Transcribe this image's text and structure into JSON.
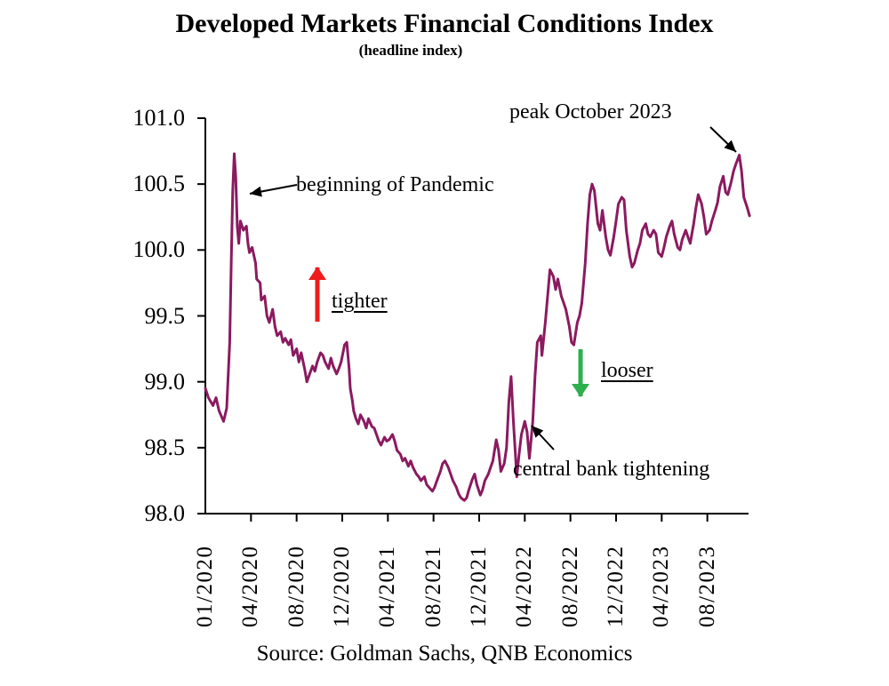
{
  "title": "Developed Markets Financial Conditions Index",
  "subtitle": "(headline index)",
  "source_note": "Source: Goldman Sachs, QNB Economics",
  "annotations": {
    "pandemic": "beginning of Pandemic",
    "peak": "peak October 2023",
    "tighter": "tighter",
    "looser": "looser",
    "central_bank": "central bank tightening"
  },
  "colors": {
    "line": "#8B1A5F",
    "axis": "#000000",
    "annotation_arrow": "#000000",
    "tighter_arrow": "#EE1C1C",
    "looser_arrow": "#2DAF4E"
  },
  "chart_data": {
    "type": "line",
    "title": "Developed Markets Financial Conditions Index (headline index)",
    "legend": "none",
    "grid": "off",
    "y_axis": {
      "min": 98.0,
      "max": 101.0,
      "ticks": [
        {
          "v": 101.0,
          "label": "101.0"
        },
        {
          "v": 100.5,
          "label": "100.5"
        },
        {
          "v": 100.0,
          "label": "100.0"
        },
        {
          "v": 99.5,
          "label": "99.5"
        },
        {
          "v": 99.0,
          "label": "99.0"
        },
        {
          "v": 98.5,
          "label": "98.5"
        },
        {
          "v": 98.0,
          "label": "98.0"
        }
      ]
    },
    "x_axis": {
      "note": "m = months since 01/2020; daily index observations 01/2020 - late 2023",
      "ticks": [
        {
          "m": 0,
          "label": "01/2020"
        },
        {
          "m": 3,
          "label": "04/2020"
        },
        {
          "m": 7,
          "label": "08/2020"
        },
        {
          "m": 11,
          "label": "12/2020"
        },
        {
          "m": 15,
          "label": "04/2021"
        },
        {
          "m": 19,
          "label": "08/2021"
        },
        {
          "m": 23,
          "label": "12/2021"
        },
        {
          "m": 27,
          "label": "04/2022"
        },
        {
          "m": 31,
          "label": "08/2022"
        },
        {
          "m": 35,
          "label": "12/2022"
        },
        {
          "m": 39,
          "label": "04/2023"
        },
        {
          "m": 43,
          "label": "08/2023"
        }
      ]
    },
    "series": [
      {
        "name": "DM Financial Conditions Index (headline)",
        "points": [
          [
            0,
            98.95
          ],
          [
            0.2,
            98.88
          ],
          [
            0.5,
            98.82
          ],
          [
            0.7,
            98.88
          ],
          [
            0.9,
            98.78
          ],
          [
            1.2,
            98.7
          ],
          [
            1.4,
            98.8
          ],
          [
            1.6,
            99.3
          ],
          [
            1.7,
            99.9
          ],
          [
            1.8,
            100.45
          ],
          [
            1.9,
            100.73
          ],
          [
            2.0,
            100.55
          ],
          [
            2.1,
            100.18
          ],
          [
            2.2,
            100.05
          ],
          [
            2.3,
            100.22
          ],
          [
            2.5,
            100.15
          ],
          [
            2.7,
            100.18
          ],
          [
            2.8,
            100.05
          ],
          [
            2.9,
            99.98
          ],
          [
            3.1,
            100.02
          ],
          [
            3.4,
            99.9
          ],
          [
            3.5,
            99.78
          ],
          [
            3.8,
            99.75
          ],
          [
            3.9,
            99.62
          ],
          [
            4.2,
            99.65
          ],
          [
            4.4,
            99.5
          ],
          [
            4.6,
            99.45
          ],
          [
            4.9,
            99.55
          ],
          [
            5.1,
            99.42
          ],
          [
            5.3,
            99.35
          ],
          [
            5.6,
            99.38
          ],
          [
            5.8,
            99.3
          ],
          [
            6.0,
            99.33
          ],
          [
            6.3,
            99.28
          ],
          [
            6.5,
            99.32
          ],
          [
            6.7,
            99.2
          ],
          [
            7.0,
            99.25
          ],
          [
            7.2,
            99.15
          ],
          [
            7.4,
            99.22
          ],
          [
            7.7,
            99.1
          ],
          [
            7.9,
            99.0
          ],
          [
            8.1,
            99.05
          ],
          [
            8.4,
            99.12
          ],
          [
            8.6,
            99.08
          ],
          [
            8.8,
            99.15
          ],
          [
            9.1,
            99.22
          ],
          [
            9.3,
            99.2
          ],
          [
            9.5,
            99.15
          ],
          [
            9.8,
            99.1
          ],
          [
            10.0,
            99.18
          ],
          [
            10.2,
            99.12
          ],
          [
            10.5,
            99.06
          ],
          [
            10.7,
            99.1
          ],
          [
            10.9,
            99.15
          ],
          [
            11.2,
            99.28
          ],
          [
            11.4,
            99.3
          ],
          [
            11.6,
            99.1
          ],
          [
            11.7,
            98.95
          ],
          [
            11.9,
            98.85
          ],
          [
            12.0,
            98.78
          ],
          [
            12.2,
            98.72
          ],
          [
            12.4,
            98.68
          ],
          [
            12.6,
            98.75
          ],
          [
            12.9,
            98.7
          ],
          [
            13.1,
            98.65
          ],
          [
            13.3,
            98.72
          ],
          [
            13.6,
            98.66
          ],
          [
            13.8,
            98.65
          ],
          [
            14.0,
            98.6
          ],
          [
            14.2,
            98.55
          ],
          [
            14.4,
            98.52
          ],
          [
            14.7,
            98.58
          ],
          [
            14.9,
            98.55
          ],
          [
            15.1,
            98.56
          ],
          [
            15.4,
            98.6
          ],
          [
            15.6,
            98.55
          ],
          [
            15.8,
            98.48
          ],
          [
            16.1,
            98.45
          ],
          [
            16.3,
            98.4
          ],
          [
            16.5,
            98.42
          ],
          [
            16.8,
            98.36
          ],
          [
            17.0,
            98.4
          ],
          [
            17.2,
            98.35
          ],
          [
            17.5,
            98.3
          ],
          [
            17.7,
            98.28
          ],
          [
            17.9,
            98.25
          ],
          [
            18.2,
            98.28
          ],
          [
            18.4,
            98.22
          ],
          [
            18.6,
            98.2
          ],
          [
            18.9,
            98.17
          ],
          [
            19.1,
            98.2
          ],
          [
            19.3,
            98.25
          ],
          [
            19.6,
            98.32
          ],
          [
            19.8,
            98.38
          ],
          [
            20.0,
            98.4
          ],
          [
            20.3,
            98.35
          ],
          [
            20.5,
            98.3
          ],
          [
            20.7,
            98.25
          ],
          [
            21.0,
            98.2
          ],
          [
            21.2,
            98.15
          ],
          [
            21.4,
            98.12
          ],
          [
            21.7,
            98.1
          ],
          [
            21.9,
            98.12
          ],
          [
            22.1,
            98.18
          ],
          [
            22.4,
            98.26
          ],
          [
            22.6,
            98.3
          ],
          [
            22.8,
            98.22
          ],
          [
            23.1,
            98.14
          ],
          [
            23.3,
            98.18
          ],
          [
            23.5,
            98.25
          ],
          [
            23.8,
            98.3
          ],
          [
            24.0,
            98.35
          ],
          [
            24.2,
            98.4
          ],
          [
            24.5,
            98.56
          ],
          [
            24.7,
            98.48
          ],
          [
            24.9,
            98.32
          ],
          [
            25.2,
            98.38
          ],
          [
            25.4,
            98.5
          ],
          [
            25.6,
            98.85
          ],
          [
            25.8,
            99.04
          ],
          [
            26.0,
            98.7
          ],
          [
            26.3,
            98.28
          ],
          [
            26.5,
            98.45
          ],
          [
            26.7,
            98.6
          ],
          [
            27.0,
            98.7
          ],
          [
            27.2,
            98.62
          ],
          [
            27.4,
            98.42
          ],
          [
            27.7,
            98.7
          ],
          [
            27.9,
            99.05
          ],
          [
            28.1,
            99.3
          ],
          [
            28.4,
            99.35
          ],
          [
            28.5,
            99.2
          ],
          [
            28.8,
            99.45
          ],
          [
            29.0,
            99.65
          ],
          [
            29.2,
            99.85
          ],
          [
            29.5,
            99.8
          ],
          [
            29.7,
            99.7
          ],
          [
            29.9,
            99.78
          ],
          [
            30.2,
            99.65
          ],
          [
            30.4,
            99.6
          ],
          [
            30.6,
            99.55
          ],
          [
            30.9,
            99.42
          ],
          [
            31.1,
            99.3
          ],
          [
            31.3,
            99.28
          ],
          [
            31.6,
            99.45
          ],
          [
            31.8,
            99.5
          ],
          [
            32.0,
            99.6
          ],
          [
            32.3,
            99.9
          ],
          [
            32.5,
            100.2
          ],
          [
            32.7,
            100.42
          ],
          [
            32.9,
            100.5
          ],
          [
            33.1,
            100.45
          ],
          [
            33.4,
            100.2
          ],
          [
            33.6,
            100.15
          ],
          [
            33.8,
            100.3
          ],
          [
            34.1,
            100.1
          ],
          [
            34.3,
            100.0
          ],
          [
            34.5,
            99.96
          ],
          [
            34.8,
            100.1
          ],
          [
            35.0,
            100.22
          ],
          [
            35.2,
            100.35
          ],
          [
            35.5,
            100.4
          ],
          [
            35.7,
            100.38
          ],
          [
            35.9,
            100.15
          ],
          [
            36.2,
            99.95
          ],
          [
            36.4,
            99.87
          ],
          [
            36.6,
            99.9
          ],
          [
            36.9,
            100.0
          ],
          [
            37.1,
            100.05
          ],
          [
            37.3,
            100.15
          ],
          [
            37.6,
            100.2
          ],
          [
            37.8,
            100.12
          ],
          [
            38.0,
            100.1
          ],
          [
            38.3,
            100.15
          ],
          [
            38.5,
            100.12
          ],
          [
            38.7,
            99.98
          ],
          [
            39.0,
            99.95
          ],
          [
            39.2,
            100.02
          ],
          [
            39.4,
            100.1
          ],
          [
            39.7,
            100.18
          ],
          [
            39.9,
            100.22
          ],
          [
            40.1,
            100.12
          ],
          [
            40.4,
            100.02
          ],
          [
            40.6,
            100.0
          ],
          [
            40.8,
            100.08
          ],
          [
            41.1,
            100.15
          ],
          [
            41.3,
            100.1
          ],
          [
            41.5,
            100.05
          ],
          [
            41.8,
            100.2
          ],
          [
            42.0,
            100.32
          ],
          [
            42.2,
            100.42
          ],
          [
            42.5,
            100.35
          ],
          [
            42.7,
            100.25
          ],
          [
            42.9,
            100.12
          ],
          [
            43.2,
            100.15
          ],
          [
            43.4,
            100.22
          ],
          [
            43.7,
            100.3
          ],
          [
            43.9,
            100.36
          ],
          [
            44.1,
            100.48
          ],
          [
            44.4,
            100.56
          ],
          [
            44.6,
            100.44
          ],
          [
            44.8,
            100.42
          ],
          [
            45.1,
            100.52
          ],
          [
            45.3,
            100.6
          ],
          [
            45.5,
            100.65
          ],
          [
            45.8,
            100.72
          ],
          [
            46.0,
            100.6
          ],
          [
            46.2,
            100.4
          ],
          [
            46.5,
            100.32
          ],
          [
            46.7,
            100.26
          ]
        ]
      }
    ]
  }
}
